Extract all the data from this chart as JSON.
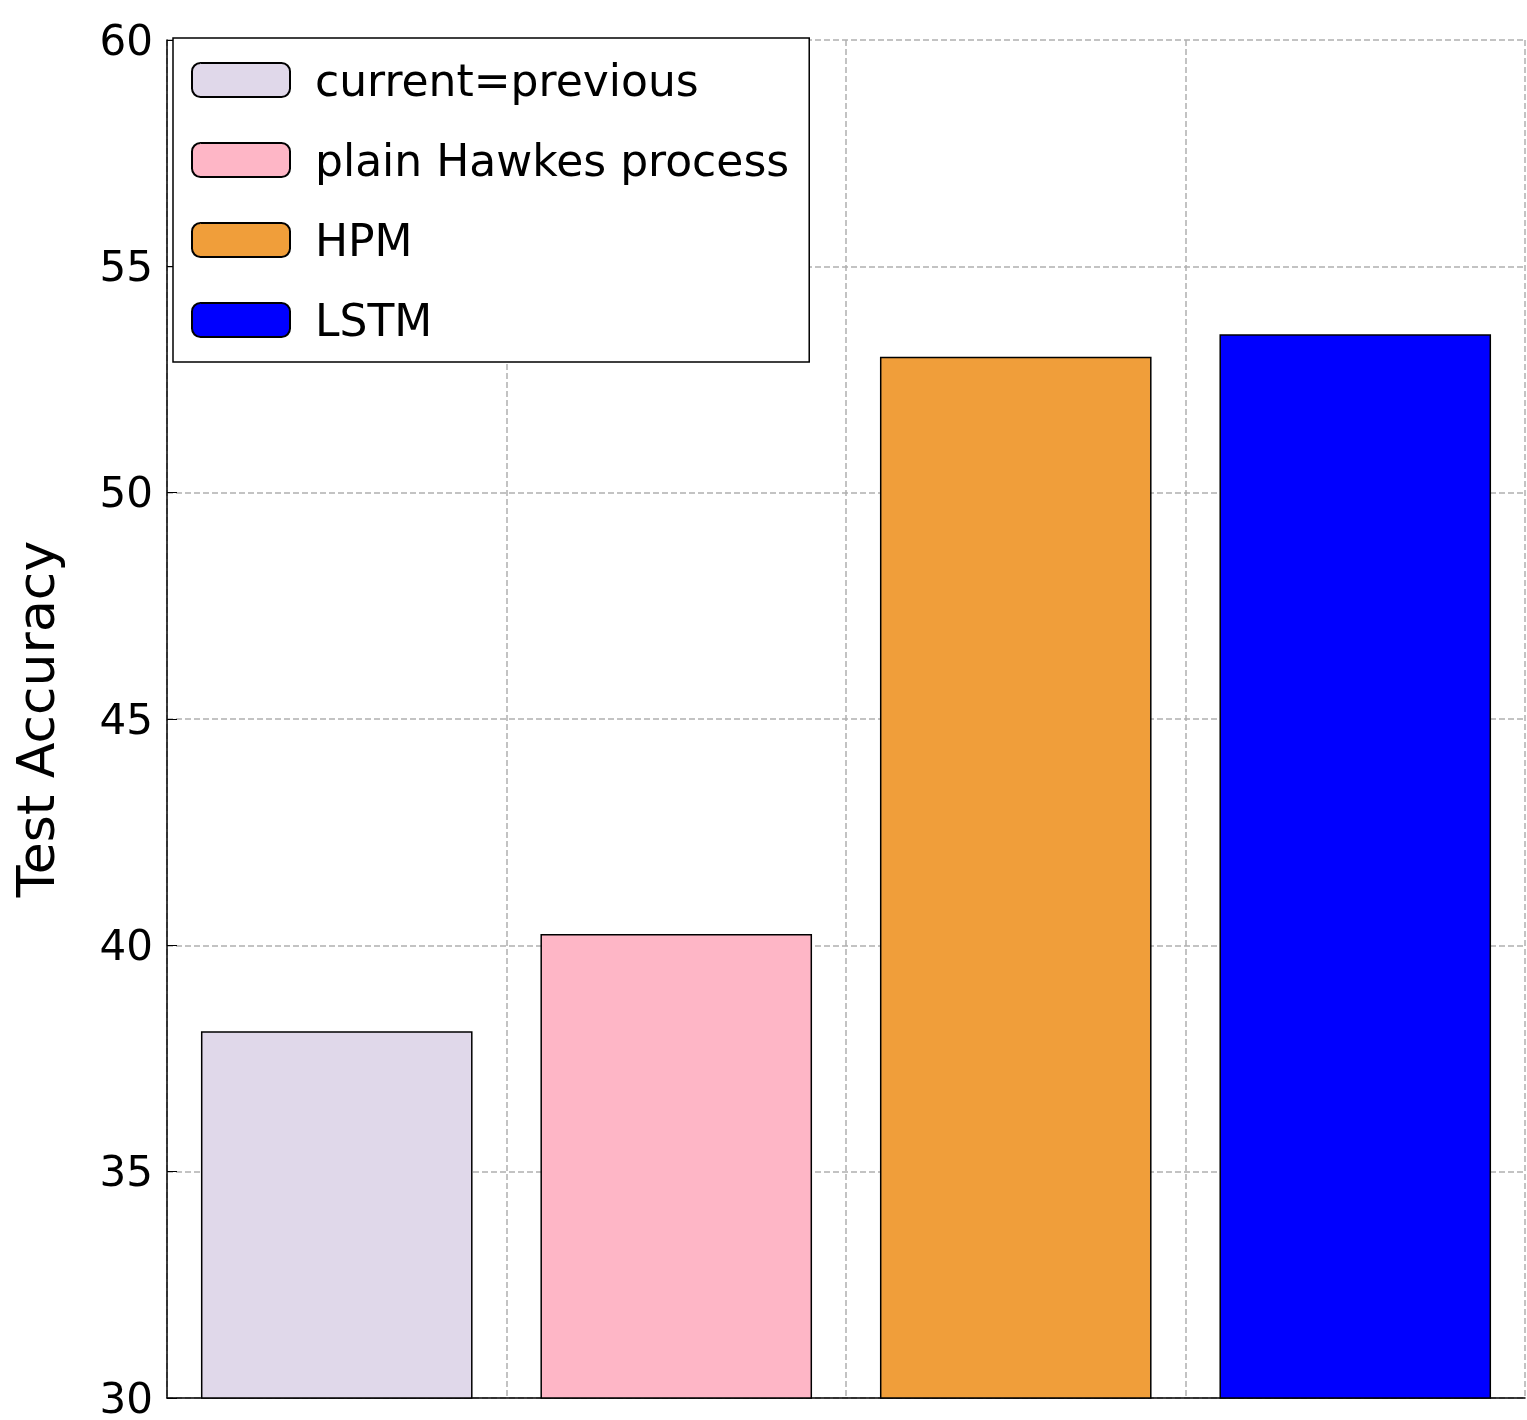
{
  "chart_data": {
    "type": "bar",
    "ylabel": "Test Accuracy",
    "categories": [
      null,
      null,
      null,
      null
    ],
    "series": [
      {
        "name": "current=previous",
        "color": "#e0d8ea",
        "values": [
          38.1,
          null,
          null,
          null
        ]
      },
      {
        "name": "plain Hawkes process",
        "color": "#feb6c6",
        "values": [
          null,
          40.25,
          null,
          null
        ]
      },
      {
        "name": "HPM",
        "color": "#f09e3a",
        "values": [
          null,
          null,
          53.0,
          null
        ]
      },
      {
        "name": "LSTM",
        "color": "#0000ff",
        "values": [
          null,
          null,
          null,
          53.5
        ]
      }
    ],
    "ylim": [
      30,
      60
    ],
    "yticks": [
      30,
      35,
      40,
      45,
      50,
      55,
      60
    ],
    "grid": true,
    "legend": "top left"
  }
}
